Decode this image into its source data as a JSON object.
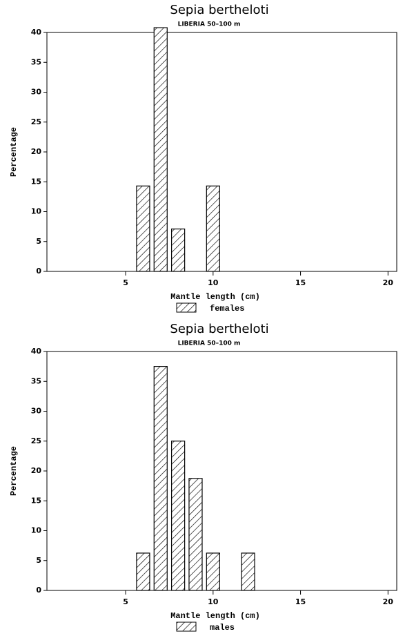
{
  "chart_data": [
    {
      "type": "bar",
      "title": "Sepia bertheloti",
      "subtitle": "LIBERIA 50–100 m",
      "x_label": "Mantle length (cm)",
      "y_label": "Percentage",
      "x": [
        6,
        7,
        8,
        10
      ],
      "series": [
        {
          "name": "females",
          "color": "#000000",
          "values": [
            14.3,
            40.8,
            7.1,
            14.3
          ]
        }
      ],
      "xlim": [
        0.5,
        20.5
      ],
      "xticks": [
        5,
        10,
        15,
        20
      ],
      "ylim": [
        0,
        40
      ],
      "yticks": [
        0,
        5,
        10,
        15,
        20,
        25,
        30,
        35,
        40
      ]
    },
    {
      "type": "bar",
      "title": "Sepia bertheloti",
      "subtitle": "LIBERIA 50–100 m",
      "x_label": "Mantle length (cm)",
      "y_label": "Percentage",
      "x": [
        6,
        7,
        8,
        9,
        10,
        12
      ],
      "series": [
        {
          "name": "males",
          "color": "#000000",
          "values": [
            6.25,
            37.5,
            25,
            18.75,
            6.25,
            6.25
          ]
        }
      ],
      "xlim": [
        0.5,
        20.5
      ],
      "xticks": [
        5,
        10,
        15,
        20
      ],
      "ylim": [
        0,
        40
      ],
      "yticks": [
        0,
        5,
        10,
        15,
        20,
        25,
        30,
        35,
        40
      ]
    }
  ]
}
